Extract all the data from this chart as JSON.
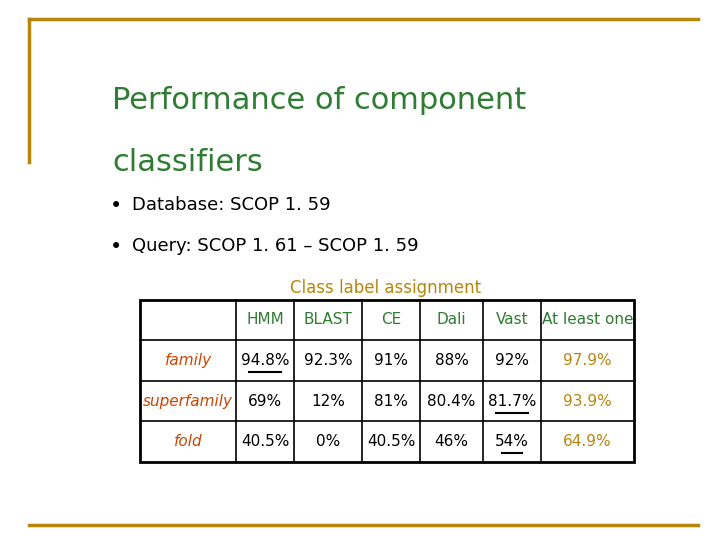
{
  "title_line1": "Performance of component",
  "title_line2": "classifiers",
  "title_color": "#2e7d32",
  "bullet1": "Database: SCOP 1. 59",
  "bullet2": "Query: SCOP 1. 61 – SCOP 1. 59",
  "bullet_color": "#000000",
  "subtitle": "Class label assignment",
  "subtitle_color": "#b8860b",
  "col_headers": [
    "",
    "HMM",
    "BLAST",
    "CE",
    "Dali",
    "Vast",
    "At least one"
  ],
  "col_header_color": "#2e7d32",
  "rows": [
    {
      "label": "family",
      "label_color": "#cc4400",
      "values": [
        "94.8%",
        "92.3%",
        "91%",
        "88%",
        "92%",
        "97.9%"
      ],
      "value_colors": [
        "#000000",
        "#000000",
        "#000000",
        "#000000",
        "#000000",
        "#b8860b"
      ],
      "underline_cols": [
        0
      ]
    },
    {
      "label": "superfamily",
      "label_color": "#cc4400",
      "values": [
        "69%",
        "12%",
        "81%",
        "80.4%",
        "81.7%",
        "93.9%"
      ],
      "value_colors": [
        "#000000",
        "#000000",
        "#000000",
        "#000000",
        "#000000",
        "#b8860b"
      ],
      "underline_cols": [
        4
      ]
    },
    {
      "label": "fold",
      "label_color": "#cc4400",
      "values": [
        "40.5%",
        "0%",
        "40.5%",
        "46%",
        "54%",
        "64.9%"
      ],
      "value_colors": [
        "#000000",
        "#000000",
        "#000000",
        "#000000",
        "#000000",
        "#b8860b"
      ],
      "underline_cols": [
        4
      ]
    }
  ],
  "border_color": "#000000",
  "bg_color": "#ffffff",
  "slide_border_color": "#b8860b",
  "title_fontsize": 22,
  "bullet_fontsize": 13,
  "subtitle_fontsize": 12,
  "table_fontsize": 11
}
